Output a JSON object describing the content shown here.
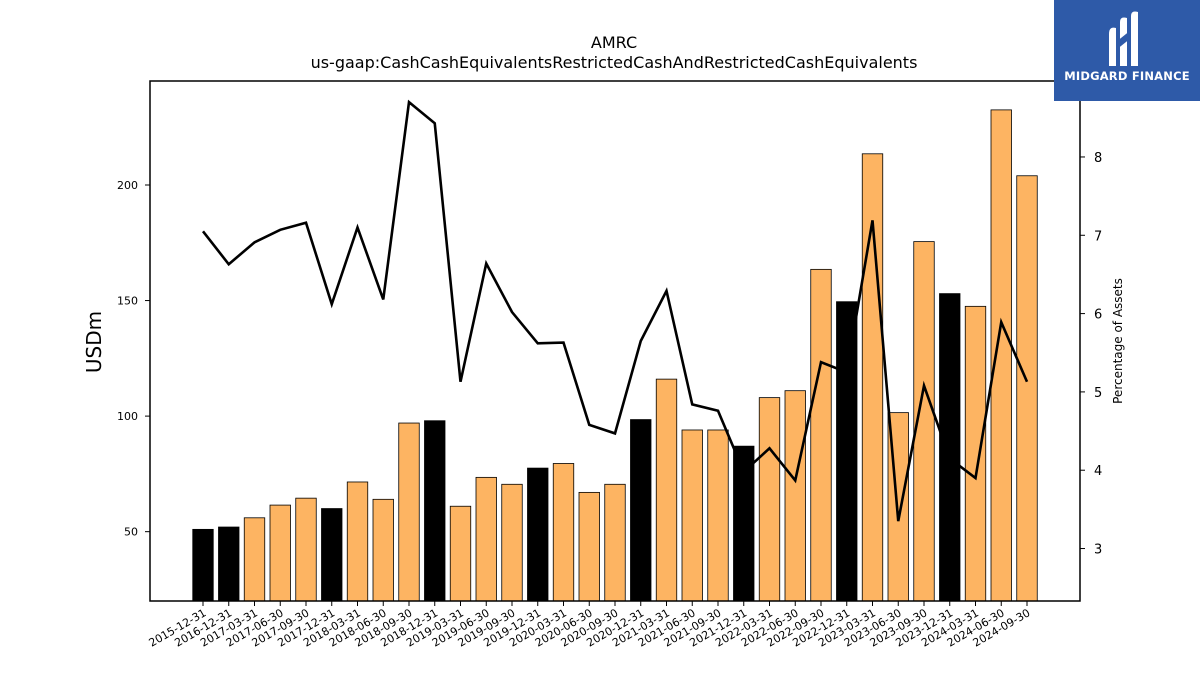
{
  "logo": {
    "brand_text": "MIDGARD FINANCE",
    "color": "#2e5aa8"
  },
  "chart_data": {
    "type": "bar",
    "title": "AMRC",
    "subtitle": "us-gaap:CashCashEquivalentsRestrictedCashAndRestrictedCashEquivalents",
    "ylabel": "USDm",
    "y2label": "Percentage of Assets",
    "ylim": [
      20,
      245
    ],
    "y2lim": [
      2.33,
      8.97
    ],
    "yticks": [
      50,
      100,
      150,
      200
    ],
    "y2ticks": [
      3,
      4,
      5,
      6,
      7,
      8
    ],
    "grid": false,
    "colors": {
      "annual": "#000000",
      "quarterly": "#fdb462",
      "line": "#000000"
    },
    "categories": [
      "2015-12-31",
      "2016-12-31",
      "2017-03-31",
      "2017-06-30",
      "2017-09-30",
      "2017-12-31",
      "2018-03-31",
      "2018-06-30",
      "2018-09-30",
      "2018-12-31",
      "2019-03-31",
      "2019-06-30",
      "2019-09-30",
      "2019-12-31",
      "2020-03-31",
      "2020-06-30",
      "2020-09-30",
      "2020-12-31",
      "2021-03-31",
      "2021-06-30",
      "2021-09-30",
      "2021-12-31",
      "2022-03-31",
      "2022-06-30",
      "2022-09-30",
      "2022-12-31",
      "2023-03-31",
      "2023-06-30",
      "2023-09-30",
      "2023-12-31",
      "2024-03-31",
      "2024-06-30",
      "2024-09-30"
    ],
    "series": [
      {
        "kind": "bar",
        "axis": "left",
        "values": [
          51,
          52,
          56,
          61.5,
          64.5,
          60,
          71.5,
          64,
          97,
          98,
          61,
          73.5,
          70.5,
          77.5,
          79.5,
          67,
          70.5,
          98.5,
          116,
          94,
          94,
          87,
          108,
          111,
          163.5,
          149.5,
          213.5,
          101.5,
          175.5,
          153,
          147.5,
          232.5,
          204
        ],
        "annual": [
          true,
          true,
          false,
          false,
          false,
          true,
          false,
          false,
          false,
          true,
          false,
          false,
          false,
          true,
          false,
          false,
          false,
          true,
          false,
          false,
          false,
          true,
          false,
          false,
          false,
          true,
          false,
          false,
          false,
          true,
          false,
          false,
          false
        ]
      },
      {
        "kind": "line",
        "axis": "right",
        "values": [
          7.05,
          6.63,
          6.91,
          7.07,
          7.16,
          6.12,
          7.1,
          6.18,
          8.7,
          8.43,
          5.13,
          6.64,
          6.02,
          5.62,
          5.63,
          4.58,
          4.47,
          5.65,
          6.29,
          4.84,
          4.76,
          3.98,
          4.28,
          3.87,
          5.38,
          5.25,
          7.19,
          3.35,
          5.08,
          4.15,
          3.9,
          5.89,
          5.13
        ]
      }
    ]
  }
}
